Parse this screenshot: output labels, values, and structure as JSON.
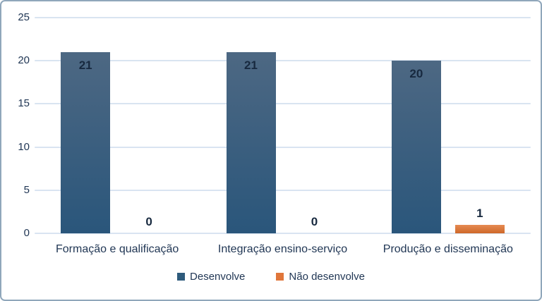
{
  "chart_data": {
    "type": "bar",
    "title": "",
    "xlabel": "",
    "ylabel": "",
    "categories": [
      "Formação e qualificação",
      "Integração ensino-serviço",
      "Produção e disseminação"
    ],
    "series": [
      {
        "name": "Desenvolve",
        "values": [
          21,
          21,
          20
        ],
        "color": "#2E5B7C",
        "gradient_top": "#4D6883",
        "gradient_bottom": "#2A567B"
      },
      {
        "name": "Não desenvolve",
        "values": [
          0,
          0,
          1
        ],
        "color": "#E0763B",
        "gradient_top": "#E68A52",
        "gradient_bottom": "#CE6829"
      }
    ],
    "ylim": [
      0,
      25
    ],
    "yticks": [
      0,
      5,
      10,
      15,
      20,
      25
    ],
    "grid": true,
    "legend_position": "bottom"
  },
  "colors": {
    "gridline": "#d9e4f1",
    "tick_text": "#1f3553",
    "category_text": "#1f3553",
    "value_text": "#17293f",
    "frame_border": "#90a7bb",
    "background": "#ffffff"
  }
}
